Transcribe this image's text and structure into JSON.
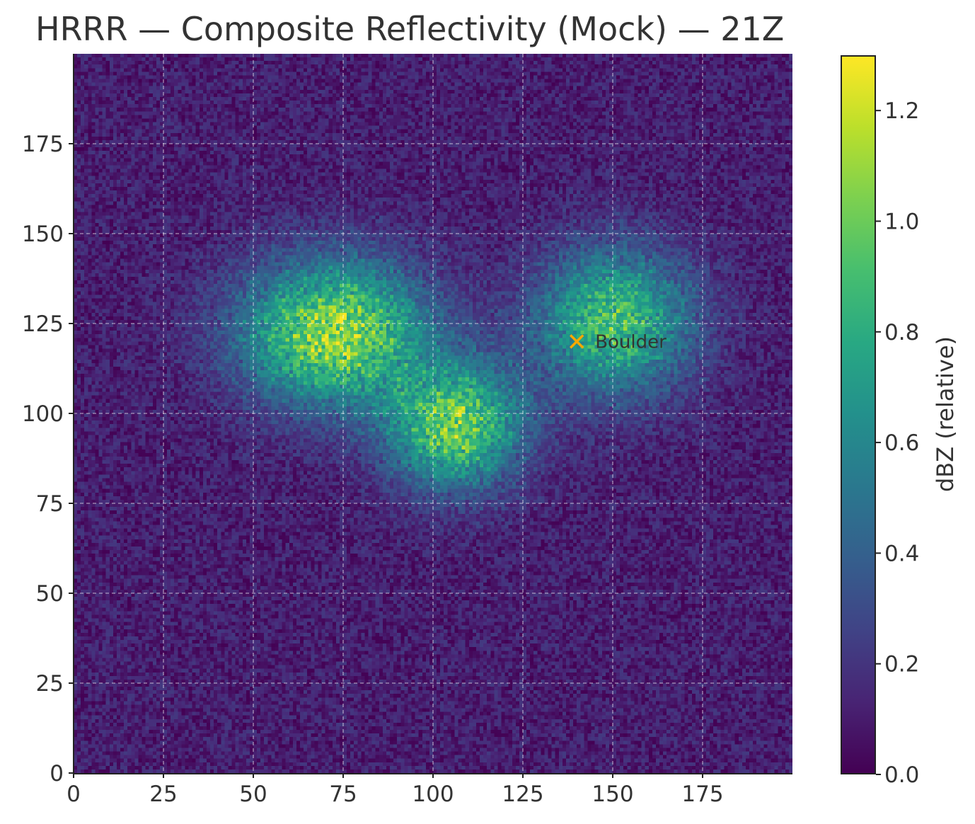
{
  "chart_data": {
    "type": "heatmap",
    "title": "HRRR — Composite Reflectivity (Mock) — 21Z",
    "grid_size": [
      200,
      200
    ],
    "xlim": [
      0,
      200
    ],
    "ylim": [
      0,
      200
    ],
    "x_ticks": [
      0,
      25,
      50,
      75,
      100,
      125,
      150,
      175
    ],
    "y_ticks": [
      0,
      25,
      50,
      75,
      100,
      125,
      150,
      175
    ],
    "grid": true,
    "colormap": "viridis",
    "colorbar": {
      "label": "dBZ (relative)",
      "range": [
        0.0,
        1.3
      ],
      "ticks": [
        "0.0",
        "0.2",
        "0.4",
        "0.6",
        "0.8",
        "1.0",
        "1.2"
      ]
    },
    "cells": [
      {
        "x": 72,
        "y": 122,
        "peak": 1.0,
        "sx": 18,
        "sy": 14
      },
      {
        "x": 106,
        "y": 96,
        "peak": 0.9,
        "sx": 13,
        "sy": 12
      },
      {
        "x": 150,
        "y": 125,
        "peak": 0.8,
        "sx": 15,
        "sy": 14
      }
    ],
    "noise_level": 0.22,
    "annotations": [
      {
        "label": "Boulder",
        "x": 140,
        "y": 120,
        "marker": "x",
        "color": "#f5a800"
      }
    ]
  }
}
